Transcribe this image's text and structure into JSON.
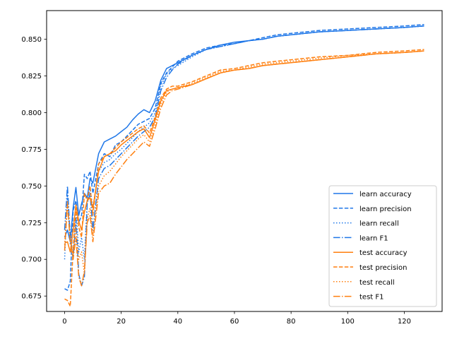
{
  "chart_data": {
    "type": "line",
    "title": "",
    "xlabel": "",
    "ylabel": "",
    "xlim": [
      -6.35,
      133.35
    ],
    "ylim": [
      0.6645,
      0.8695
    ],
    "x_ticks": [
      0,
      20,
      40,
      60,
      80,
      100,
      120
    ],
    "y_ticks": [
      0.675,
      0.7,
      0.725,
      0.75,
      0.775,
      0.8,
      0.825,
      0.85
    ],
    "x_tick_labels": [
      "0",
      "20",
      "40",
      "60",
      "80",
      "100",
      "120"
    ],
    "y_tick_labels": [
      "0.675",
      "0.700",
      "0.725",
      "0.750",
      "0.775",
      "0.800",
      "0.825",
      "0.850"
    ],
    "grid": false,
    "legend_position": "lower-right",
    "colors": {
      "learn": "#1f77e8",
      "test": "#ff7f0e"
    },
    "series": [
      {
        "name": "learn accuracy",
        "color": "#1f77e8",
        "style": "solid",
        "x": [
          0,
          1,
          2,
          3,
          4,
          5,
          6,
          7,
          8,
          9,
          10,
          12,
          14,
          16,
          18,
          20,
          22,
          24,
          26,
          28,
          30,
          32,
          34,
          36,
          38,
          40,
          45,
          50,
          55,
          60,
          65,
          70,
          75,
          80,
          90,
          100,
          110,
          120,
          127
        ],
        "y": [
          0.715,
          0.72,
          0.712,
          0.735,
          0.749,
          0.73,
          0.738,
          0.745,
          0.742,
          0.755,
          0.752,
          0.772,
          0.78,
          0.782,
          0.784,
          0.787,
          0.79,
          0.795,
          0.799,
          0.802,
          0.8,
          0.808,
          0.822,
          0.83,
          0.832,
          0.834,
          0.839,
          0.843,
          0.846,
          0.848,
          0.849,
          0.85,
          0.852,
          0.853,
          0.855,
          0.856,
          0.857,
          0.858,
          0.859
        ]
      },
      {
        "name": "learn precision",
        "color": "#1f77e8",
        "style": "dashed",
        "x": [
          0,
          1,
          2,
          3,
          4,
          5,
          6,
          7,
          8,
          9,
          10,
          12,
          14,
          16,
          18,
          20,
          22,
          24,
          26,
          28,
          30,
          32,
          34,
          36,
          38,
          40,
          45,
          50,
          55,
          60,
          65,
          70,
          75,
          80,
          90,
          100,
          110,
          120,
          127
        ],
        "y": [
          0.68,
          0.679,
          0.685,
          0.733,
          0.74,
          0.725,
          0.73,
          0.758,
          0.755,
          0.76,
          0.745,
          0.765,
          0.772,
          0.77,
          0.778,
          0.78,
          0.784,
          0.788,
          0.792,
          0.794,
          0.796,
          0.803,
          0.82,
          0.827,
          0.831,
          0.835,
          0.84,
          0.844,
          0.846,
          0.847,
          0.849,
          0.851,
          0.853,
          0.854,
          0.856,
          0.857,
          0.858,
          0.859,
          0.86
        ]
      },
      {
        "name": "learn recall",
        "color": "#1f77e8",
        "style": "dotted",
        "x": [
          0,
          1,
          2,
          3,
          4,
          5,
          6,
          7,
          8,
          9,
          10,
          12,
          14,
          16,
          18,
          20,
          22,
          24,
          26,
          28,
          30,
          32,
          34,
          36,
          38,
          40,
          45,
          50,
          55,
          60,
          65,
          70,
          75,
          80,
          90,
          100,
          110,
          120,
          127
        ],
        "y": [
          0.7,
          0.744,
          0.71,
          0.72,
          0.735,
          0.705,
          0.715,
          0.7,
          0.74,
          0.748,
          0.735,
          0.76,
          0.766,
          0.768,
          0.772,
          0.775,
          0.779,
          0.783,
          0.787,
          0.79,
          0.793,
          0.8,
          0.818,
          0.826,
          0.83,
          0.832,
          0.838,
          0.843,
          0.845,
          0.847,
          0.849,
          0.85,
          0.852,
          0.853,
          0.855,
          0.856,
          0.857,
          0.858,
          0.859
        ]
      },
      {
        "name": "learn F1",
        "color": "#1f77e8",
        "style": "dashdot",
        "x": [
          0,
          1,
          2,
          3,
          4,
          5,
          6,
          7,
          8,
          9,
          10,
          12,
          14,
          16,
          18,
          20,
          22,
          24,
          26,
          28,
          30,
          32,
          34,
          36,
          38,
          40,
          45,
          50,
          55,
          60,
          65,
          70,
          75,
          80,
          90,
          100,
          110,
          120,
          127
        ],
        "y": [
          0.72,
          0.75,
          0.715,
          0.7,
          0.728,
          0.69,
          0.682,
          0.688,
          0.738,
          0.745,
          0.72,
          0.755,
          0.762,
          0.764,
          0.768,
          0.772,
          0.776,
          0.78,
          0.784,
          0.787,
          0.79,
          0.797,
          0.815,
          0.824,
          0.829,
          0.833,
          0.839,
          0.843,
          0.845,
          0.847,
          0.849,
          0.85,
          0.852,
          0.853,
          0.855,
          0.856,
          0.857,
          0.858,
          0.859
        ]
      },
      {
        "name": "test accuracy",
        "color": "#ff7f0e",
        "style": "solid",
        "x": [
          0,
          1,
          2,
          3,
          4,
          5,
          6,
          7,
          8,
          9,
          10,
          12,
          14,
          16,
          18,
          20,
          22,
          24,
          26,
          28,
          30,
          32,
          34,
          36,
          38,
          40,
          45,
          50,
          55,
          60,
          65,
          70,
          75,
          80,
          90,
          100,
          110,
          120,
          127
        ],
        "y": [
          0.711,
          0.712,
          0.705,
          0.72,
          0.737,
          0.726,
          0.72,
          0.732,
          0.74,
          0.742,
          0.735,
          0.76,
          0.77,
          0.772,
          0.774,
          0.778,
          0.781,
          0.784,
          0.787,
          0.789,
          0.783,
          0.795,
          0.808,
          0.815,
          0.816,
          0.817,
          0.819,
          0.823,
          0.827,
          0.829,
          0.83,
          0.832,
          0.833,
          0.834,
          0.836,
          0.838,
          0.84,
          0.841,
          0.842
        ]
      },
      {
        "name": "test precision",
        "color": "#ff7f0e",
        "style": "dashed",
        "x": [
          0,
          1,
          2,
          3,
          4,
          5,
          6,
          7,
          8,
          9,
          10,
          12,
          14,
          16,
          18,
          20,
          22,
          24,
          26,
          28,
          30,
          32,
          34,
          36,
          38,
          40,
          45,
          50,
          55,
          60,
          65,
          70,
          75,
          80,
          90,
          100,
          110,
          120,
          127
        ],
        "y": [
          0.673,
          0.672,
          0.668,
          0.706,
          0.735,
          0.722,
          0.715,
          0.745,
          0.74,
          0.75,
          0.73,
          0.765,
          0.77,
          0.772,
          0.776,
          0.78,
          0.783,
          0.786,
          0.789,
          0.791,
          0.786,
          0.797,
          0.81,
          0.816,
          0.818,
          0.818,
          0.821,
          0.825,
          0.829,
          0.83,
          0.832,
          0.834,
          0.835,
          0.836,
          0.838,
          0.839,
          0.841,
          0.842,
          0.843
        ]
      },
      {
        "name": "test recall",
        "color": "#ff7f0e",
        "style": "dotted",
        "x": [
          0,
          1,
          2,
          3,
          4,
          5,
          6,
          7,
          8,
          9,
          10,
          12,
          14,
          16,
          18,
          20,
          22,
          24,
          26,
          28,
          30,
          32,
          34,
          36,
          38,
          40,
          45,
          50,
          55,
          60,
          65,
          70,
          75,
          80,
          90,
          100,
          110,
          120,
          127
        ],
        "y": [
          0.71,
          0.74,
          0.713,
          0.705,
          0.722,
          0.7,
          0.705,
          0.69,
          0.728,
          0.735,
          0.716,
          0.75,
          0.757,
          0.76,
          0.765,
          0.77,
          0.774,
          0.778,
          0.782,
          0.785,
          0.78,
          0.792,
          0.806,
          0.814,
          0.816,
          0.817,
          0.82,
          0.824,
          0.828,
          0.829,
          0.831,
          0.833,
          0.834,
          0.835,
          0.837,
          0.839,
          0.84,
          0.841,
          0.842
        ]
      },
      {
        "name": "test F1",
        "color": "#ff7f0e",
        "style": "dashdot",
        "x": [
          0,
          1,
          2,
          3,
          4,
          5,
          6,
          7,
          8,
          9,
          10,
          12,
          14,
          16,
          18,
          20,
          22,
          24,
          26,
          28,
          30,
          32,
          34,
          36,
          38,
          40,
          45,
          50,
          55,
          60,
          65,
          70,
          75,
          80,
          90,
          100,
          110,
          120,
          127
        ],
        "y": [
          0.706,
          0.738,
          0.712,
          0.7,
          0.715,
          0.688,
          0.682,
          0.692,
          0.725,
          0.73,
          0.712,
          0.745,
          0.75,
          0.752,
          0.758,
          0.763,
          0.768,
          0.772,
          0.776,
          0.78,
          0.777,
          0.789,
          0.803,
          0.812,
          0.815,
          0.816,
          0.819,
          0.823,
          0.827,
          0.829,
          0.83,
          0.832,
          0.833,
          0.834,
          0.836,
          0.838,
          0.84,
          0.841,
          0.842
        ]
      }
    ]
  }
}
